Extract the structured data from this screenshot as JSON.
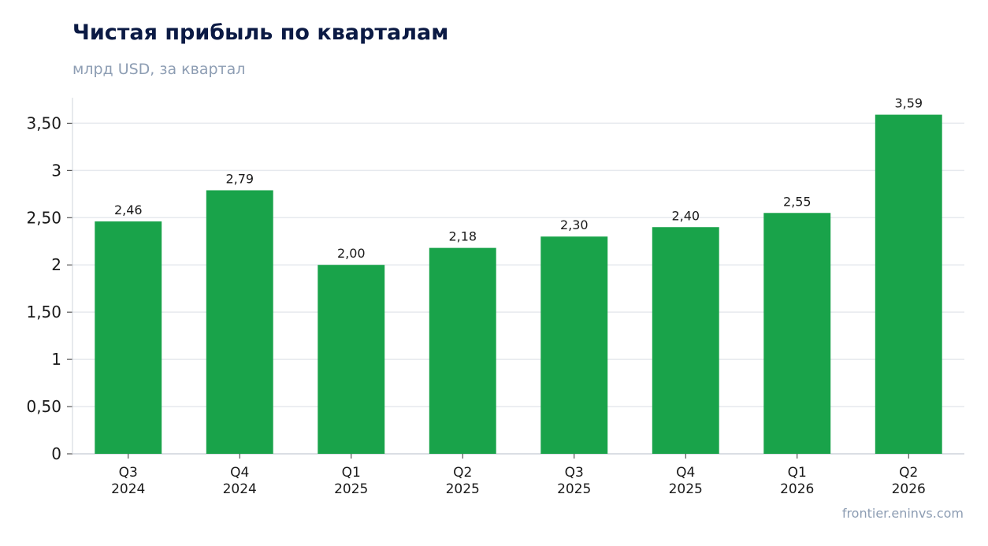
{
  "chart_title": "Чистая прибыль по кварталам",
  "chart_subtitle": "млрд USD, за квартал",
  "source": "frontier.eninvs.com",
  "colors": {
    "bar": "#19a34a",
    "grid": "#e6e9ee",
    "axis": "#cfd4db"
  },
  "chart_data": {
    "type": "bar",
    "title": "Чистая прибыль по кварталам",
    "subtitle": "млрд USD, за квартал",
    "categories": [
      [
        "Q3",
        "2024"
      ],
      [
        "Q4",
        "2024"
      ],
      [
        "Q1",
        "2025"
      ],
      [
        "Q2",
        "2025"
      ],
      [
        "Q3",
        "2025"
      ],
      [
        "Q4",
        "2025"
      ],
      [
        "Q1",
        "2026"
      ],
      [
        "Q2",
        "2026"
      ]
    ],
    "values": [
      2.46,
      2.79,
      2.0,
      2.18,
      2.3,
      2.4,
      2.55,
      3.59
    ],
    "value_labels": [
      "2,46",
      "2,79",
      "2,00",
      "2,18",
      "2,30",
      "2,40",
      "2,55",
      "3,59"
    ],
    "y_ticks": [
      0,
      0.5,
      1,
      1.5,
      2,
      2.5,
      3,
      3.5
    ],
    "y_tick_labels": [
      "0",
      "0,50",
      "1",
      "1,50",
      "2",
      "2,50",
      "3",
      "3,50"
    ],
    "ylim": [
      0,
      3.77
    ],
    "grid": true,
    "legend": "none"
  }
}
